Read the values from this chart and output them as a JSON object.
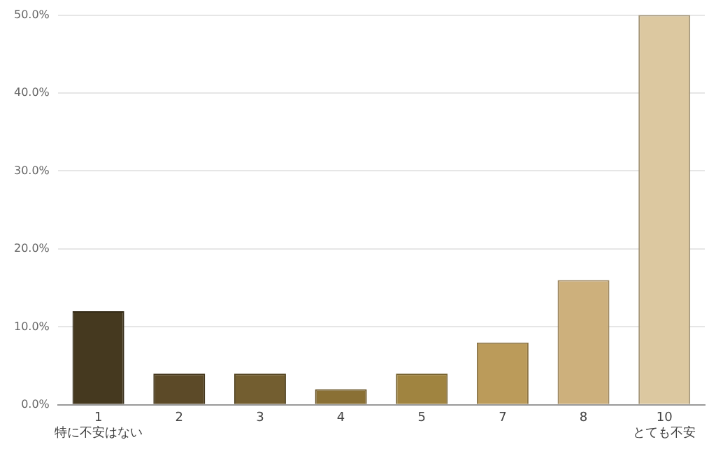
{
  "chart_data": {
    "type": "bar",
    "categories": [
      "1\n特に不安はない",
      "2",
      "3",
      "4",
      "5",
      "7",
      "8",
      "10\nとても不安"
    ],
    "values": [
      12,
      4,
      4,
      2,
      4,
      8,
      16,
      50
    ],
    "colors": [
      "#45391f",
      "#5c4a28",
      "#735e30",
      "#8a7035",
      "#a08440",
      "#bb9b5a",
      "#cdb07c",
      "#dcc8a0"
    ],
    "ylim": [
      0,
      50
    ],
    "yticks": [
      {
        "value": 0,
        "label": "0.0%"
      },
      {
        "value": 10,
        "label": "10.0%"
      },
      {
        "value": 20,
        "label": "20.0%"
      },
      {
        "value": 30,
        "label": "30.0%"
      },
      {
        "value": 40,
        "label": "40.0%"
      },
      {
        "value": 50,
        "label": "50.0%"
      }
    ],
    "grid": "y",
    "legend": false
  }
}
